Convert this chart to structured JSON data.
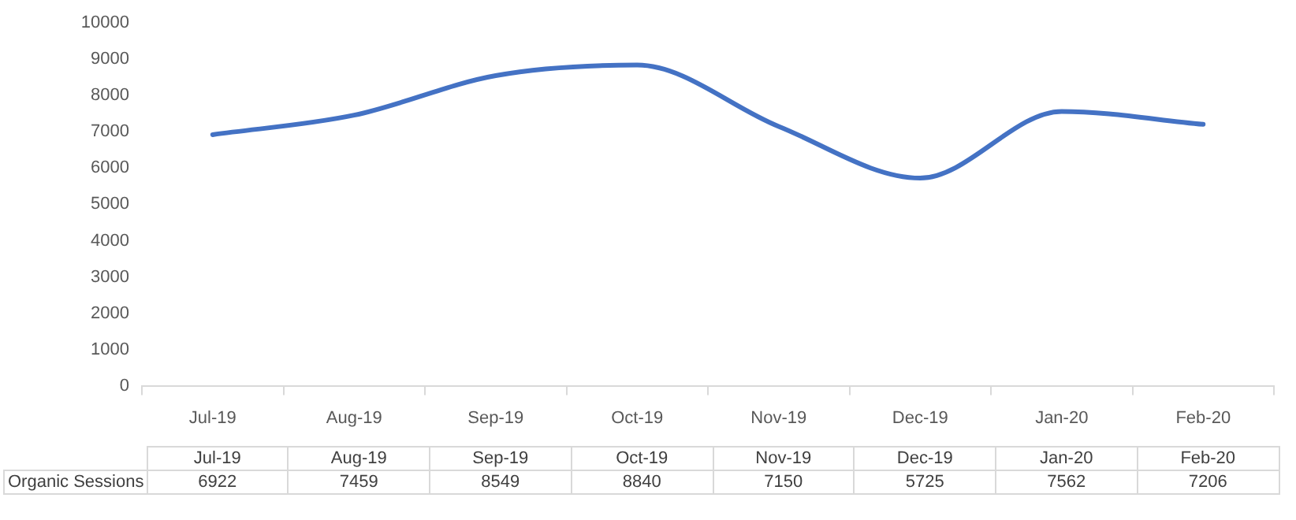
{
  "chart_data": {
    "type": "line",
    "categories": [
      "Jul-19",
      "Aug-19",
      "Sep-19",
      "Oct-19",
      "Nov-19",
      "Dec-19",
      "Jan-20",
      "Feb-20"
    ],
    "series": [
      {
        "name": "Organic Sessions",
        "color": "#4472c4",
        "values": [
          6922,
          7459,
          8549,
          8840,
          7150,
          5725,
          7562,
          7206
        ]
      }
    ],
    "ylim": [
      0,
      10000
    ],
    "yticks": [
      0,
      1000,
      2000,
      3000,
      4000,
      5000,
      6000,
      7000,
      8000,
      9000,
      10000
    ],
    "grid": false,
    "legend": false,
    "marker": "none",
    "line_style": "solid",
    "data_labels": true
  }
}
